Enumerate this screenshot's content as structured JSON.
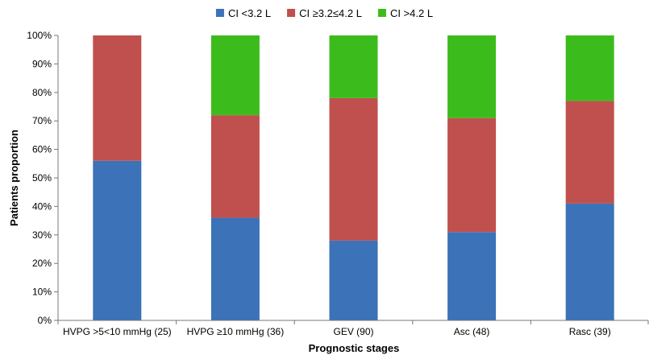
{
  "chart_data": {
    "type": "bar",
    "stacked": "percent",
    "categories": [
      "HVPG >5<10 mmHg (25)",
      "HVPG ≥10 mmHg (36)",
      "GEV (90)",
      "Asc (48)",
      "Rasc (39)"
    ],
    "series": [
      {
        "name": "CI <3.2 L",
        "color": "#3b72b8",
        "values": [
          56,
          36,
          28,
          31,
          41
        ]
      },
      {
        "name": "CI ≥3.2≤4.2 L",
        "color": "#c0504d",
        "values": [
          44,
          36,
          50,
          40,
          36
        ]
      },
      {
        "name": "CI >4.2 L",
        "color": "#3cbc1c",
        "values": [
          0,
          28,
          22,
          29,
          23
        ]
      }
    ],
    "xlabel": "Prognostic stages",
    "ylabel": "Patients proportion",
    "ylim": [
      0,
      100
    ],
    "yticks": [
      "0%",
      "10%",
      "20%",
      "30%",
      "40%",
      "50%",
      "60%",
      "70%",
      "80%",
      "90%",
      "100%"
    ],
    "legend_position": "top",
    "grid": false
  }
}
